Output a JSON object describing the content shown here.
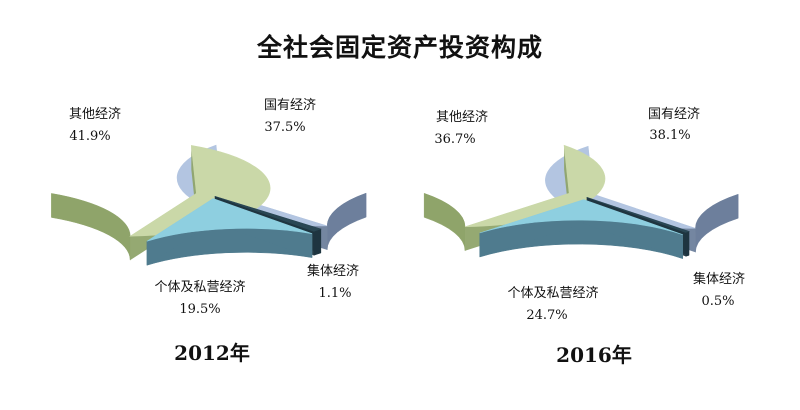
{
  "title": "全社会固定资产投资构成",
  "colors": {
    "国有经济": {
      "top": "#b3c5e1",
      "side": "#6d7f9c"
    },
    "集体经济": {
      "top": "#2a4754",
      "side": "#1f3540"
    },
    "个体及私营经济": {
      "top": "#8ecfe0",
      "side": "#4f7b8e"
    },
    "其他经济": {
      "top": "#cad8a8",
      "side": "#8fa46a"
    }
  },
  "chart_data": [
    {
      "type": "pie",
      "title": "2012年",
      "categories": [
        "国有经济",
        "集体经济",
        "个体及私营经济",
        "其他经济"
      ],
      "values": [
        37.5,
        1.1,
        19.5,
        41.9
      ],
      "value_labels": [
        "37.5%",
        "1.1%",
        "19.5%",
        "41.9%"
      ]
    },
    {
      "type": "pie",
      "title": "2016年",
      "categories": [
        "国有经济",
        "集体经济",
        "个体及私营经济",
        "其他经济"
      ],
      "values": [
        38.1,
        0.5,
        24.7,
        36.7
      ],
      "value_labels": [
        "38.1%",
        "0.5%",
        "24.7%",
        "36.7%"
      ]
    }
  ]
}
